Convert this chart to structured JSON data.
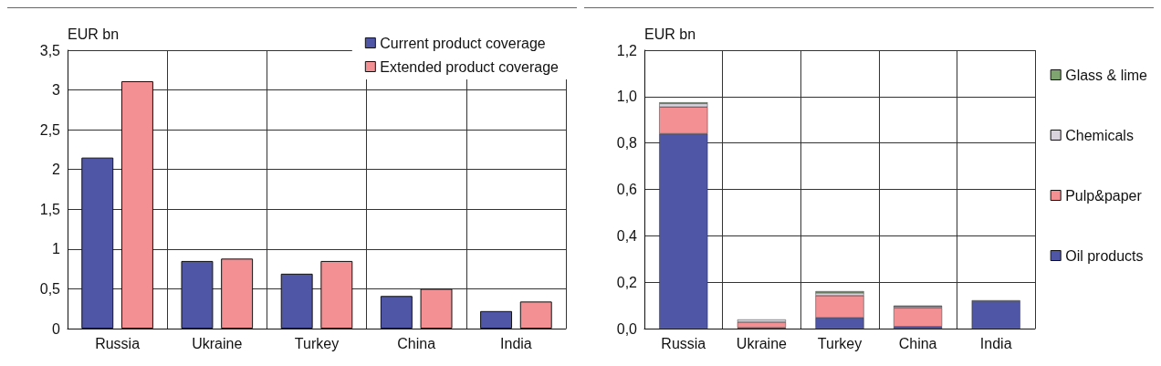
{
  "chart_data": [
    {
      "type": "bar",
      "ylabel": "EUR bn",
      "categories": [
        "Russia",
        "Ukraine",
        "Turkey",
        "China",
        "India"
      ],
      "series": [
        {
          "name": "Current product coverage",
          "color": "#4f56a6",
          "values": [
            2.15,
            0.85,
            0.69,
            0.41,
            0.22
          ]
        },
        {
          "name": "Extended product coverage",
          "color": "#f29094",
          "values": [
            3.11,
            0.88,
            0.85,
            0.5,
            0.34
          ]
        }
      ],
      "ylim": [
        0,
        3.5
      ],
      "yticks": [
        0,
        {
          "value": 0.5,
          "label": "0,5"
        },
        1,
        {
          "value": 1.5,
          "label": "1,5"
        },
        2,
        {
          "value": 2.5,
          "label": "2,5"
        },
        3,
        {
          "value": 3.5,
          "label": "3,5"
        }
      ],
      "grid": true,
      "legend": "top right"
    },
    {
      "type": "bar",
      "ylabel": "EUR bn",
      "stacked": true,
      "categories": [
        "Russia",
        "Ukraine",
        "Turkey",
        "China",
        "India"
      ],
      "series": [
        {
          "name": "Oil products",
          "color": "#4f56a6",
          "values": [
            0.84,
            0.004,
            0.047,
            0.009,
            0.118
          ]
        },
        {
          "name": "Pulp&paper",
          "color": "#f29094",
          "values": [
            0.115,
            0.024,
            0.095,
            0.08,
            null
          ]
        },
        {
          "name": "Chemicals",
          "color": "#d8d3dc",
          "values": [
            0.015,
            0.011,
            0.012,
            0.006,
            null
          ]
        },
        {
          "name": "Glass & lime",
          "color": "#7fa46f",
          "values": [
            0.005,
            null,
            0.007,
            0.004,
            0.004
          ]
        }
      ],
      "ylim": [
        0,
        1.2
      ],
      "yticks": [
        {
          "value": 0,
          "label": "0,0"
        },
        {
          "value": 0.2,
          "label": "0,2"
        },
        {
          "value": 0.4,
          "label": "0,4"
        },
        {
          "value": 0.6,
          "label": "0,6"
        },
        {
          "value": 0.8,
          "label": "0,8"
        },
        {
          "value": 1.0,
          "label": "1,0"
        },
        {
          "value": 1.2,
          "label": "1,2"
        }
      ],
      "grid": true,
      "legend": "right"
    }
  ]
}
